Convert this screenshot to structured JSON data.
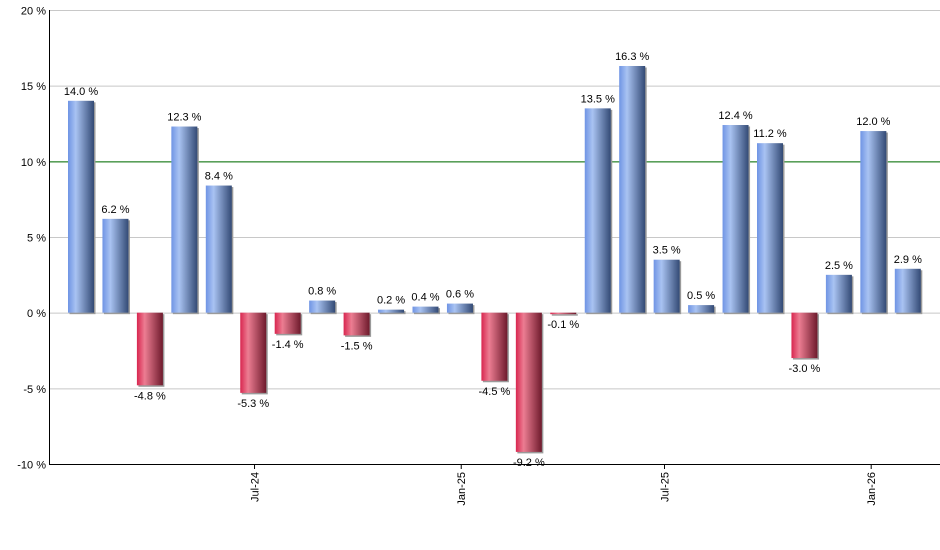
{
  "chart_data": {
    "type": "bar",
    "title": "",
    "xlabel": "",
    "ylabel": "",
    "ylim": [
      -10,
      20
    ],
    "yticks": [
      "20 %",
      "15 %",
      "10 %",
      "5 %",
      "0 %",
      "-5 %",
      "-10 %"
    ],
    "ytick_values": [
      20,
      15,
      10,
      5,
      0,
      -5,
      -10
    ],
    "xtick_labels": [
      "Jul-24",
      "Jan-25",
      "Jul-25",
      "Jan-26"
    ],
    "xtick_bar_positions": [
      5.4,
      11.4,
      17.3,
      23.3
    ],
    "grid": true,
    "reference_line": {
      "value": 10,
      "color": "#007000"
    },
    "values": [
      14.0,
      6.2,
      -4.8,
      12.3,
      8.4,
      -5.3,
      -1.4,
      0.8,
      -1.5,
      0.2,
      0.4,
      0.6,
      -4.5,
      -9.2,
      -0.1,
      13.5,
      16.3,
      3.5,
      0.5,
      12.4,
      11.2,
      -3.0,
      2.5,
      12.0,
      2.9
    ],
    "labels": [
      "14.0 %",
      "6.2 %",
      "-4.8 %",
      "12.3 %",
      "8.4 %",
      "-5.3 %",
      "-1.4 %",
      "0.8 %",
      "-1.5 %",
      "0.2 %",
      "0.4 %",
      "0.6 %",
      "-4.5 %",
      "-9.2 %",
      "-0.1 %",
      "13.5 %",
      "16.3 %",
      "3.5 %",
      "0.5 %",
      "12.4 %",
      "11.2 %",
      "-3.0 %",
      "2.5 %",
      "12.0 %",
      "2.9 %"
    ],
    "colors": {
      "positive": "#7a9fe0",
      "negative": "#d9385a"
    }
  }
}
